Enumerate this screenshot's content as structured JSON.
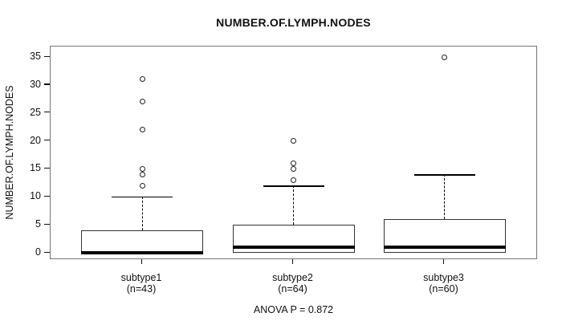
{
  "title": "NUMBER.OF.LYMPH.NODES",
  "chart_data": {
    "type": "boxplot",
    "title": "NUMBER.OF.LYMPH.NODES",
    "ylabel": "NUMBER.OF.LYMPH.NODES",
    "xlabel": "",
    "ylim": [
      0,
      35
    ],
    "yticks": [
      0,
      5,
      10,
      15,
      20,
      25,
      30,
      35
    ],
    "grid": false,
    "legend": "none",
    "annotation": "ANOVA P = 0.872",
    "groups": [
      {
        "label": "subtype1",
        "sublabel": "(n=43)",
        "n": 43,
        "q1": 0,
        "median": 0,
        "q3": 4,
        "whisker_low": 0,
        "whisker_high": 10,
        "outliers": [
          12,
          14,
          15,
          22,
          27,
          31
        ]
      },
      {
        "label": "subtype2",
        "sublabel": "(n=64)",
        "n": 64,
        "q1": 0,
        "median": 1,
        "q3": 5,
        "whisker_low": 0,
        "whisker_high": 12,
        "outliers": [
          13,
          15,
          16,
          20
        ]
      },
      {
        "label": "subtype3",
        "sublabel": "(n=60)",
        "n": 60,
        "q1": 0,
        "median": 1,
        "q3": 6,
        "whisker_low": 0,
        "whisker_high": 14,
        "outliers": [
          35
        ]
      }
    ]
  },
  "colors": {
    "line": "#000000",
    "box_border": "#333333",
    "frame": "#757575",
    "background": "#ffffff"
  }
}
